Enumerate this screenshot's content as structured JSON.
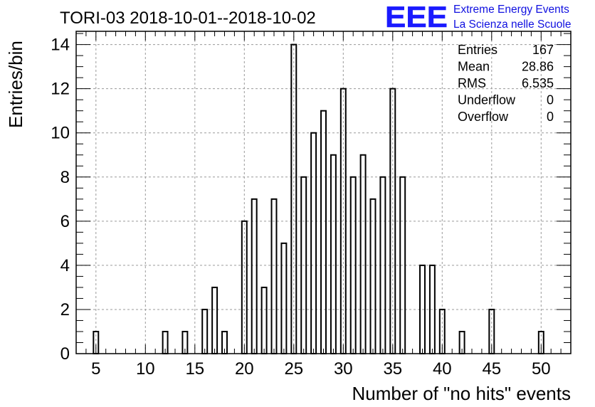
{
  "chart_data": {
    "type": "bar",
    "title": "TORI-03 2018-10-01--2018-10-02",
    "xlabel": "Number of \"no hits\" events",
    "ylabel": "Entries/bin",
    "xlim": [
      3,
      53
    ],
    "ylim": [
      0,
      14.6
    ],
    "grid": true,
    "x_ticks": [
      5,
      10,
      15,
      20,
      25,
      30,
      35,
      40,
      45,
      50
    ],
    "y_ticks": [
      0,
      2,
      4,
      6,
      8,
      10,
      12,
      14
    ],
    "bin_width": 0.5,
    "bins": [
      {
        "x": 5,
        "count": 1
      },
      {
        "x": 12,
        "count": 1
      },
      {
        "x": 14,
        "count": 1
      },
      {
        "x": 16,
        "count": 2
      },
      {
        "x": 17,
        "count": 3
      },
      {
        "x": 18,
        "count": 1
      },
      {
        "x": 20,
        "count": 6
      },
      {
        "x": 21,
        "count": 7
      },
      {
        "x": 22,
        "count": 3
      },
      {
        "x": 23,
        "count": 7
      },
      {
        "x": 24,
        "count": 5
      },
      {
        "x": 25,
        "count": 14
      },
      {
        "x": 26,
        "count": 8
      },
      {
        "x": 27,
        "count": 10
      },
      {
        "x": 28,
        "count": 11
      },
      {
        "x": 29,
        "count": 9
      },
      {
        "x": 30,
        "count": 12
      },
      {
        "x": 31,
        "count": 8
      },
      {
        "x": 32,
        "count": 9
      },
      {
        "x": 33,
        "count": 7
      },
      {
        "x": 34,
        "count": 8
      },
      {
        "x": 35,
        "count": 12
      },
      {
        "x": 36,
        "count": 8
      },
      {
        "x": 38,
        "count": 4
      },
      {
        "x": 39,
        "count": 4
      },
      {
        "x": 40,
        "count": 2
      },
      {
        "x": 42,
        "count": 1
      },
      {
        "x": 45,
        "count": 2
      },
      {
        "x": 50,
        "count": 1
      }
    ],
    "stats": [
      {
        "label": "Entries",
        "value": "167"
      },
      {
        "label": "Mean",
        "value": "28.86"
      },
      {
        "label": "RMS",
        "value": "6.535"
      },
      {
        "label": "Underflow",
        "value": "0"
      },
      {
        "label": "Overflow",
        "value": "0"
      }
    ]
  },
  "logo": {
    "mark": "EEE",
    "line1": "Extreme Energy Events",
    "line2": "La Scienza nelle Scuole",
    "color": "#1010e0"
  }
}
